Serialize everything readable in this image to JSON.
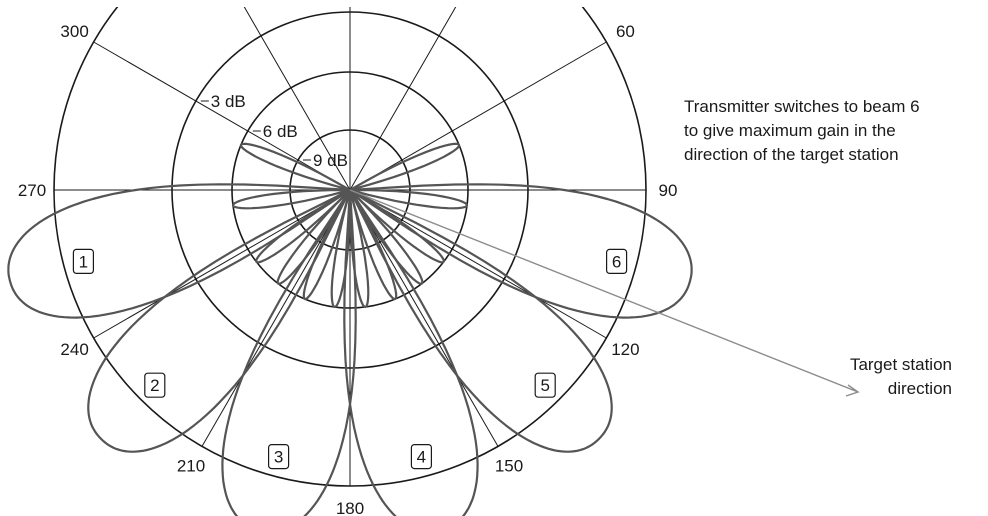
{
  "angles": [
    {
      "deg": 300,
      "label": "300"
    },
    {
      "deg": 60,
      "label": "60"
    },
    {
      "deg": 270,
      "label": "270"
    },
    {
      "deg": 90,
      "label": "90"
    },
    {
      "deg": 240,
      "label": "240"
    },
    {
      "deg": 120,
      "label": "120"
    },
    {
      "deg": 210,
      "label": "210"
    },
    {
      "deg": 150,
      "label": "150"
    },
    {
      "deg": 180,
      "label": "180"
    }
  ],
  "rings": [
    {
      "label": "3 dB"
    },
    {
      "label": "6 dB"
    },
    {
      "label": "9 dB"
    }
  ],
  "beams": [
    {
      "label": "1",
      "direction_deg": 255
    },
    {
      "label": "2",
      "direction_deg": 225
    },
    {
      "label": "3",
      "direction_deg": 195
    },
    {
      "label": "4",
      "direction_deg": 165
    },
    {
      "label": "5",
      "direction_deg": 135
    },
    {
      "label": "6",
      "direction_deg": 105
    }
  ],
  "note": {
    "line1": "Transmitter switches to beam 6",
    "line2": "to give maximum gain in the",
    "line3": "direction of the target station"
  },
  "target": {
    "line1": "Target station",
    "line2": "direction"
  },
  "colors": {
    "lobe": "#555555",
    "grid": "#1a1a1a",
    "arrow": "#8c8c8c"
  }
}
